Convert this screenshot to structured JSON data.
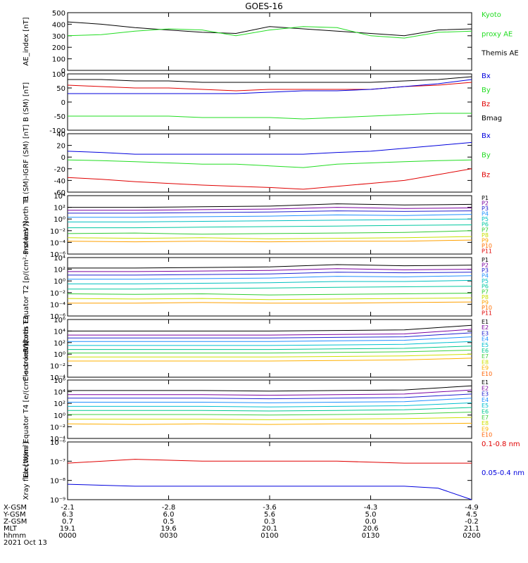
{
  "title": "GOES-16",
  "date_label": "2021 Oct 13",
  "colors": {
    "black": "#000000",
    "red": "#e00000",
    "green": "#22dd22",
    "blue": "#0000dd",
    "protons": [
      "#000000",
      "#7a00a0",
      "#2020d0",
      "#1e90ff",
      "#00c0c0",
      "#00c8a0",
      "#30cc30",
      "#c8e000",
      "#ffa000",
      "#ff7000",
      "#e00000"
    ],
    "electrons": [
      "#000000",
      "#7a00a0",
      "#2020d0",
      "#1e90ff",
      "#00c0d0",
      "#00c890",
      "#40d040",
      "#d0e000",
      "#ffb000",
      "#ff6000",
      "#e00000"
    ]
  },
  "ephemeris": {
    "row_labels": [
      "X-GSM",
      "Y-GSM",
      "Z-GSM",
      "MLT",
      "hhmm"
    ],
    "columns": [
      [
        "-2.1",
        "6.3",
        "0.7",
        "19.1",
        "0000"
      ],
      [
        "-2.8",
        "6.0",
        "0.5",
        "19.6",
        "0030"
      ],
      [
        "-3.6",
        "5.6",
        "0.3",
        "20.1",
        "0100"
      ],
      [
        "-4.3",
        "5.0",
        "0.0",
        "20.6",
        "0130"
      ],
      [
        "-4.9",
        "4.5",
        "-0.2",
        "21.1",
        "0200"
      ]
    ]
  },
  "chart_data": [
    {
      "type": "line",
      "ylabel": "AE_index [nT]",
      "ylim": [
        0,
        500
      ],
      "yticks": [
        "0",
        "100",
        "200",
        "300",
        "400",
        "500"
      ],
      "legend": [
        {
          "text": "Kyoto",
          "color": "#22dd22"
        },
        {
          "text": "proxy AE",
          "color": "#22dd22"
        },
        {
          "text": "Themis AE",
          "color": "#000000"
        }
      ],
      "x": [
        0,
        10,
        20,
        30,
        40,
        50,
        60,
        70,
        80,
        90,
        100,
        110,
        120
      ],
      "series": [
        {
          "name": "Themis AE",
          "color": "#000000",
          "values": [
            420,
            400,
            370,
            350,
            330,
            320,
            380,
            360,
            340,
            320,
            300,
            350,
            360
          ]
        },
        {
          "name": "Kyoto proxy AE",
          "color": "#22dd22",
          "values": [
            300,
            310,
            340,
            360,
            350,
            300,
            350,
            380,
            370,
            300,
            280,
            330,
            340
          ]
        }
      ]
    },
    {
      "type": "line",
      "ylabel": "B (SM) [nT]",
      "ylim": [
        -100,
        100
      ],
      "yticks": [
        "-100",
        "-50",
        "0",
        "50",
        "100"
      ],
      "legend": [
        {
          "text": "Bx",
          "color": "#0000dd"
        },
        {
          "text": "By",
          "color": "#22dd22"
        },
        {
          "text": "Bz",
          "color": "#e00000"
        },
        {
          "text": "Bmag",
          "color": "#000000"
        }
      ],
      "x": [
        0,
        10,
        20,
        30,
        40,
        50,
        60,
        70,
        80,
        90,
        100,
        110,
        120
      ],
      "series": [
        {
          "name": "Bmag",
          "color": "#000000",
          "values": [
            80,
            80,
            75,
            75,
            70,
            70,
            70,
            70,
            70,
            70,
            75,
            80,
            90
          ]
        },
        {
          "name": "Bz",
          "color": "#e00000",
          "values": [
            60,
            55,
            50,
            50,
            45,
            40,
            45,
            45,
            45,
            45,
            55,
            60,
            70
          ]
        },
        {
          "name": "Bx",
          "color": "#0000dd",
          "values": [
            30,
            30,
            30,
            30,
            30,
            30,
            35,
            40,
            40,
            45,
            55,
            65,
            80
          ]
        },
        {
          "name": "By",
          "color": "#22dd22",
          "values": [
            -50,
            -50,
            -50,
            -50,
            -55,
            -55,
            -55,
            -60,
            -55,
            -50,
            -45,
            -40,
            -40
          ]
        }
      ]
    },
    {
      "type": "line",
      "ylabel": "B (SM)-IGRF (SM) [nT]",
      "ylim": [
        -60,
        40
      ],
      "yticks": [
        "-60",
        "-40",
        "-20",
        "0",
        "20",
        "40"
      ],
      "legend": [
        {
          "text": "Bx",
          "color": "#0000dd"
        },
        {
          "text": "By",
          "color": "#22dd22"
        },
        {
          "text": "Bz",
          "color": "#e00000"
        }
      ],
      "x": [
        0,
        10,
        20,
        30,
        40,
        50,
        60,
        70,
        80,
        90,
        100,
        110,
        120
      ],
      "series": [
        {
          "name": "Bx",
          "color": "#0000dd",
          "values": [
            10,
            8,
            5,
            5,
            5,
            5,
            5,
            5,
            8,
            10,
            15,
            20,
            25
          ]
        },
        {
          "name": "By",
          "color": "#22dd22",
          "values": [
            -5,
            -6,
            -8,
            -10,
            -12,
            -12,
            -15,
            -18,
            -12,
            -10,
            -8,
            -6,
            -5
          ]
        },
        {
          "name": "Bz",
          "color": "#e00000",
          "values": [
            -35,
            -38,
            -42,
            -45,
            -48,
            -50,
            -52,
            -55,
            -50,
            -45,
            -40,
            -30,
            -20
          ]
        }
      ]
    },
    {
      "type": "line",
      "log": true,
      "ylabel": "Protons North T1",
      "ylim": [
        -6,
        4
      ],
      "yticks": [
        "10⁻⁶",
        "10⁻⁴",
        "10⁻²",
        "10⁰",
        "10²",
        "10⁴"
      ],
      "legend": [
        {
          "text": "P1"
        },
        {
          "text": "P2"
        },
        {
          "text": "P3"
        },
        {
          "text": "P4"
        },
        {
          "text": "P5"
        },
        {
          "text": "P6"
        },
        {
          "text": "P7"
        },
        {
          "text": "P8"
        },
        {
          "text": "P9"
        },
        {
          "text": "P10"
        },
        {
          "text": "P11"
        }
      ],
      "x": [
        0,
        20,
        40,
        60,
        80,
        100,
        120
      ],
      "series": [
        {
          "name": "P1",
          "values": [
            2.0,
            2.0,
            2.1,
            2.2,
            2.6,
            2.4,
            2.5
          ]
        },
        {
          "name": "P2",
          "values": [
            1.5,
            1.5,
            1.6,
            1.7,
            2.0,
            1.8,
            1.9
          ]
        },
        {
          "name": "P3",
          "values": [
            1.0,
            1.0,
            1.1,
            1.2,
            1.4,
            1.3,
            1.4
          ]
        },
        {
          "name": "P4",
          "values": [
            0.3,
            0.3,
            0.4,
            0.5,
            0.7,
            0.6,
            0.8
          ]
        },
        {
          "name": "P5",
          "values": [
            -0.5,
            -0.5,
            -0.4,
            -0.3,
            -0.2,
            -0.1,
            0.0
          ]
        },
        {
          "name": "P6",
          "values": [
            -1.5,
            -1.5,
            -1.4,
            -1.3,
            -1.2,
            -1.1,
            -1.0
          ]
        },
        {
          "name": "P7",
          "values": [
            -2.5,
            -2.4,
            -2.6,
            -2.5,
            -2.4,
            -2.3,
            -2.0
          ]
        },
        {
          "name": "P8",
          "values": [
            -3.2,
            -3.3,
            -3.2,
            -3.4,
            -3.3,
            -3.2,
            -3.0
          ]
        },
        {
          "name": "P9",
          "values": [
            -3.8,
            -3.9,
            -3.8,
            -3.9,
            -3.8,
            -3.8,
            -3.6
          ]
        }
      ]
    },
    {
      "type": "line",
      "log": true,
      "ylabel": "Protons Equator T2 [p/(cm²-s-sr-keV)]",
      "ylim": [
        -6,
        4
      ],
      "yticks": [
        "10⁻⁶",
        "10⁻⁴",
        "10⁻²",
        "10⁰",
        "10²",
        "10⁴"
      ],
      "legend": [
        {
          "text": "P1"
        },
        {
          "text": "P2"
        },
        {
          "text": "P3"
        },
        {
          "text": "P4"
        },
        {
          "text": "P5"
        },
        {
          "text": "P6"
        },
        {
          "text": "P7"
        },
        {
          "text": "P8"
        },
        {
          "text": "P9"
        },
        {
          "text": "P10"
        },
        {
          "text": "P11"
        }
      ],
      "x": [
        0,
        20,
        40,
        60,
        80,
        100,
        120
      ],
      "series": [
        {
          "name": "P1",
          "values": [
            2.2,
            2.2,
            2.3,
            2.4,
            2.8,
            2.6,
            2.7
          ]
        },
        {
          "name": "P2",
          "values": [
            1.6,
            1.6,
            1.7,
            1.8,
            2.1,
            1.9,
            2.0
          ]
        },
        {
          "name": "P3",
          "values": [
            1.0,
            1.0,
            1.1,
            1.2,
            1.5,
            1.4,
            1.5
          ]
        },
        {
          "name": "P4",
          "values": [
            0.3,
            0.3,
            0.4,
            0.5,
            0.8,
            0.7,
            0.9
          ]
        },
        {
          "name": "P5",
          "values": [
            -0.5,
            -0.5,
            -0.4,
            -0.3,
            -0.1,
            -0.1,
            0.1
          ]
        },
        {
          "name": "P6",
          "values": [
            -1.4,
            -1.4,
            -1.3,
            -1.2,
            -1.1,
            -1.0,
            -0.9
          ]
        },
        {
          "name": "P7",
          "values": [
            -2.2,
            -2.3,
            -2.2,
            -2.4,
            -2.3,
            -2.2,
            -2.1
          ]
        },
        {
          "name": "P8",
          "values": [
            -3.0,
            -3.1,
            -3.0,
            -3.2,
            -3.1,
            -3.0,
            -2.9
          ]
        },
        {
          "name": "P9",
          "values": [
            -3.8,
            -3.8,
            -3.7,
            -3.8,
            -3.8,
            -3.7,
            -3.6
          ]
        }
      ]
    },
    {
      "type": "line",
      "log": true,
      "ylabel": "Electrons North T3",
      "ylim": [
        -4,
        6
      ],
      "yticks": [
        "10⁻⁴",
        "10⁻²",
        "10⁰",
        "10²",
        "10⁴",
        "10⁶"
      ],
      "legend": [
        {
          "text": "E1"
        },
        {
          "text": "E2"
        },
        {
          "text": "E3"
        },
        {
          "text": "E4"
        },
        {
          "text": "E5"
        },
        {
          "text": "E6"
        },
        {
          "text": "E7"
        },
        {
          "text": "E8"
        },
        {
          "text": "E9"
        },
        {
          "text": "E10"
        }
      ],
      "x": [
        0,
        20,
        40,
        60,
        80,
        100,
        120
      ],
      "series": [
        {
          "name": "E1",
          "values": [
            4.0,
            4.0,
            4.0,
            4.0,
            4.1,
            4.2,
            5.0
          ]
        },
        {
          "name": "E2",
          "values": [
            3.3,
            3.3,
            3.3,
            3.3,
            3.4,
            3.5,
            4.3
          ]
        },
        {
          "name": "E3",
          "values": [
            2.8,
            2.8,
            2.8,
            2.8,
            2.9,
            3.0,
            3.7
          ]
        },
        {
          "name": "E4",
          "values": [
            2.2,
            2.2,
            2.2,
            2.2,
            2.3,
            2.4,
            3.0
          ]
        },
        {
          "name": "E5",
          "values": [
            1.5,
            1.5,
            1.5,
            1.5,
            1.6,
            1.7,
            2.2
          ]
        },
        {
          "name": "E6",
          "values": [
            0.8,
            0.8,
            0.8,
            0.8,
            0.9,
            1.0,
            1.4
          ]
        },
        {
          "name": "E7",
          "values": [
            0.2,
            0.2,
            0.2,
            0.2,
            0.3,
            0.4,
            0.7
          ]
        },
        {
          "name": "E8",
          "values": [
            -0.5,
            -0.5,
            -0.5,
            -0.5,
            -0.4,
            -0.3,
            0.0
          ]
        },
        {
          "name": "E9",
          "values": [
            -1.2,
            -1.2,
            -1.2,
            -1.2,
            -1.1,
            -1.0,
            -0.7
          ]
        }
      ]
    },
    {
      "type": "line",
      "log": true,
      "ylabel": "Electrons Equator T4 [e/(cm²-s-sr-keV)]",
      "ylim": [
        -4,
        6
      ],
      "yticks": [
        "10⁻⁴",
        "10⁻²",
        "10⁰",
        "10²",
        "10⁴",
        "10⁶"
      ],
      "legend": [
        {
          "text": "E1"
        },
        {
          "text": "E2"
        },
        {
          "text": "E3"
        },
        {
          "text": "E4"
        },
        {
          "text": "E5"
        },
        {
          "text": "E6"
        },
        {
          "text": "E7"
        },
        {
          "text": "E8"
        },
        {
          "text": "E9"
        },
        {
          "text": "E10"
        }
      ],
      "x": [
        0,
        20,
        40,
        60,
        80,
        100,
        120
      ],
      "series": [
        {
          "name": "E1",
          "values": [
            4.2,
            4.2,
            4.2,
            4.1,
            4.2,
            4.3,
            5.0
          ]
        },
        {
          "name": "E2",
          "values": [
            3.5,
            3.5,
            3.5,
            3.4,
            3.5,
            3.6,
            4.3
          ]
        },
        {
          "name": "E3",
          "values": [
            2.9,
            2.9,
            2.9,
            2.8,
            2.9,
            3.0,
            3.6
          ]
        },
        {
          "name": "E4",
          "values": [
            2.2,
            2.2,
            2.2,
            2.1,
            2.2,
            2.3,
            2.9
          ]
        },
        {
          "name": "E5",
          "values": [
            1.5,
            1.5,
            1.5,
            1.4,
            1.5,
            1.6,
            2.1
          ]
        },
        {
          "name": "E6",
          "values": [
            0.8,
            0.8,
            0.8,
            0.7,
            0.8,
            0.9,
            1.3
          ]
        },
        {
          "name": "E7",
          "values": [
            0.1,
            0.1,
            0.1,
            0.0,
            0.1,
            0.2,
            0.5
          ]
        },
        {
          "name": "E8",
          "values": [
            -0.7,
            -0.7,
            -0.7,
            -0.8,
            -0.7,
            -0.6,
            -0.4
          ]
        },
        {
          "name": "E9",
          "values": [
            -1.5,
            -1.6,
            -1.5,
            -1.6,
            -1.5,
            -1.5,
            -1.4
          ]
        }
      ]
    },
    {
      "type": "line",
      "log": true,
      "ylabel": "Xray flux [W/m²]",
      "ylim": [
        -9,
        -6
      ],
      "yticks": [
        "10⁻⁹",
        "10⁻⁸",
        "10⁻⁷",
        "10⁻⁶"
      ],
      "legend": [
        {
          "text": "0.1-0.8 nm",
          "color": "#e00000"
        },
        {
          "text": "0.05-0.4 nm",
          "color": "#0000dd"
        }
      ],
      "x": [
        0,
        20,
        40,
        60,
        80,
        100,
        110,
        120
      ],
      "series": [
        {
          "name": "0.1-0.8 nm",
          "color": "#e00000",
          "values": [
            -7.1,
            -6.9,
            -7.0,
            -7.0,
            -7.0,
            -7.1,
            -7.1,
            -7.1
          ]
        },
        {
          "name": "0.05-0.4 nm",
          "color": "#0000dd",
          "values": [
            -8.2,
            -8.3,
            -8.3,
            -8.3,
            -8.3,
            -8.3,
            -8.4,
            -9.0
          ]
        }
      ]
    }
  ]
}
